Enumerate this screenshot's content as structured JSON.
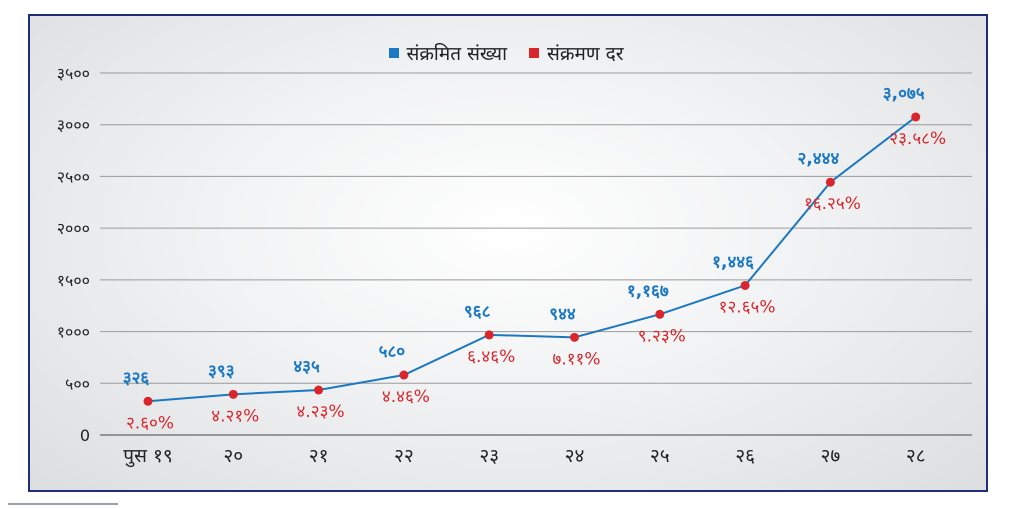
{
  "chart_data": {
    "type": "line",
    "legend": {
      "placement": "top-center",
      "items": [
        {
          "label": "संक्रमित संख्या",
          "color": "#1b78c2"
        },
        {
          "label": "संक्रमण दर",
          "color": "#d8262c"
        }
      ]
    },
    "categories": [
      "पुस १९",
      "२०",
      "२१",
      "२२",
      "२३",
      "२४",
      "२५",
      "२६",
      "२७",
      "२८"
    ],
    "y_ticks": [
      {
        "value": 0,
        "label": "0"
      },
      {
        "value": 500,
        "label": "५००"
      },
      {
        "value": 1000,
        "label": "१०००"
      },
      {
        "value": 1500,
        "label": "१५००"
      },
      {
        "value": 2000,
        "label": "२०००"
      },
      {
        "value": 2500,
        "label": "२५००"
      },
      {
        "value": 3000,
        "label": "३०००"
      },
      {
        "value": 3500,
        "label": "३५००"
      }
    ],
    "ylim": [
      0,
      3500
    ],
    "grid": true,
    "series": [
      {
        "name": "संक्रमित संख्या",
        "color": "#1b78c2",
        "values": [
          326,
          393,
          435,
          580,
          968,
          944,
          1167,
          1446,
          2444,
          3075
        ],
        "labels": [
          "३२६",
          "३९३",
          "४३५",
          "५८०",
          "९६८",
          "९४४",
          "१,१६७",
          "१,४४६",
          "२,४४४",
          "३,०७५"
        ]
      },
      {
        "name": "संक्रमण दर",
        "color": "#d8262c",
        "labels": [
          "२.६०%",
          "४.२१%",
          "४.२३%",
          "४.४६%",
          "६.४६%",
          "७.११%",
          "९.२३%",
          "१२.६५%",
          "१६.२५%",
          "२३.५८%"
        ]
      }
    ]
  }
}
